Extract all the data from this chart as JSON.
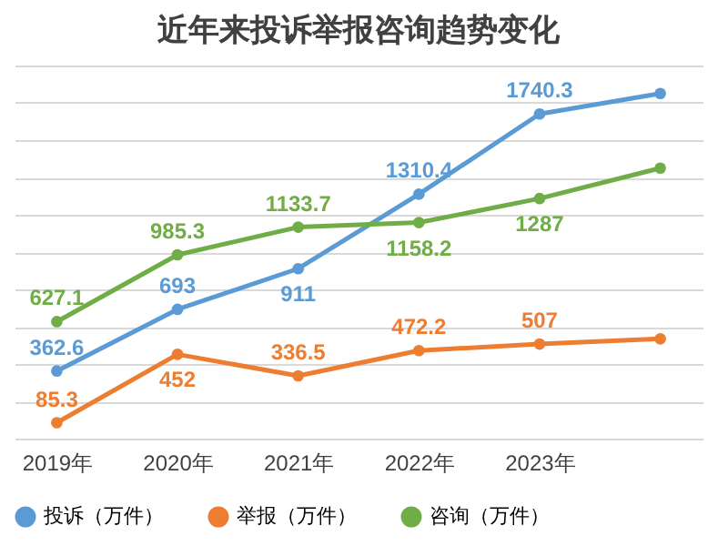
{
  "chart_data": {
    "type": "line",
    "title": "近年来投诉举报咨询趋势变化",
    "categories": [
      "2019年",
      "2020年",
      "2021年",
      "2022年",
      "2023年",
      null
    ],
    "series": [
      {
        "name": "投诉（万件）",
        "color": "#5b9bd5",
        "values": [
          362.6,
          693,
          911,
          1310.4,
          1740.3,
          1850
        ],
        "value_labels": [
          "362.6",
          "693",
          "911",
          "1310.4",
          "1740.3",
          null
        ]
      },
      {
        "name": "举报（万件）",
        "color": "#ed7d31",
        "values": [
          85.3,
          452,
          336.5,
          472.2,
          507,
          535
        ],
        "value_labels": [
          "85.3",
          "452",
          "336.5",
          "472.2",
          "507",
          null
        ]
      },
      {
        "name": "咨询（万件）",
        "color": "#70ad47",
        "values": [
          627.1,
          985.3,
          1133.7,
          1158.2,
          1287,
          1450
        ],
        "value_labels": [
          "627.1",
          "985.3",
          "1133.7",
          "1158.2",
          "1287",
          null
        ]
      }
    ],
    "ylim": [
      0,
      2000
    ],
    "tick_labels": "x",
    "grid": "y",
    "legend": "bottom",
    "marker": "circle",
    "line_style": "solid"
  }
}
